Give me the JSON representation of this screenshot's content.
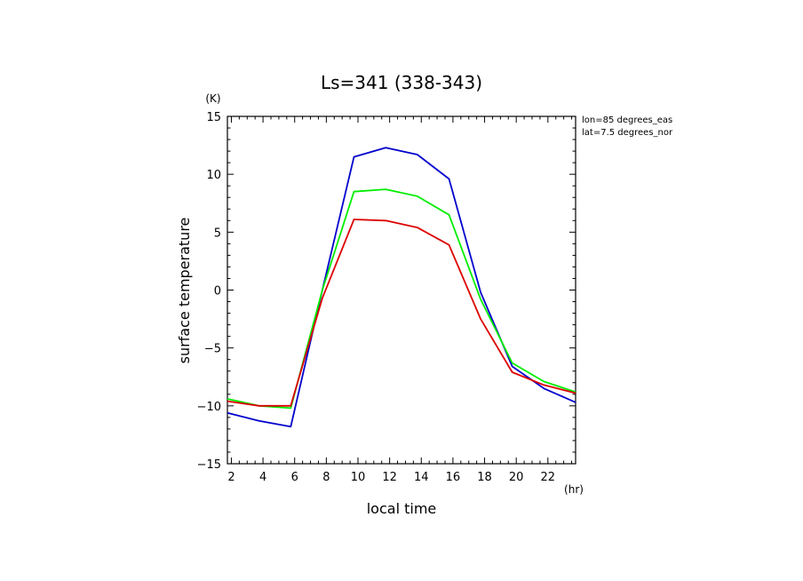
{
  "chart_data": {
    "type": "line",
    "title": "Ls=341 (338-343)",
    "xlabel": "local time",
    "ylabel": "surface temperature",
    "x_unit": "(hr)",
    "y_unit": "(K)",
    "annotations": [
      "lon=85 degrees_eas",
      "lat=7.5 degrees_nor"
    ],
    "xlim": [
      1.75,
      23.75
    ],
    "ylim": [
      -15,
      15
    ],
    "x_ticks": [
      2,
      4,
      6,
      8,
      10,
      12,
      14,
      16,
      18,
      20,
      22
    ],
    "y_ticks": [
      -15,
      -10,
      -5,
      0,
      5,
      10,
      15
    ],
    "x": [
      1.75,
      3.75,
      5.75,
      7.75,
      9.75,
      11.75,
      13.75,
      15.75,
      17.75,
      19.75,
      21.75,
      23.75
    ],
    "series": [
      {
        "color": "#0000cc",
        "values": [
          -10.6,
          -11.3,
          -11.8,
          0.0,
          11.5,
          12.3,
          11.7,
          9.6,
          -0.2,
          -6.6,
          -8.5,
          -9.7
        ]
      },
      {
        "color": "#00ee00",
        "values": [
          -9.4,
          -10.0,
          -10.2,
          0.0,
          8.5,
          8.7,
          8.1,
          6.5,
          -0.8,
          -6.3,
          -7.9,
          -8.8
        ]
      },
      {
        "color": "#dd0000",
        "values": [
          -9.6,
          -10.0,
          -10.0,
          -0.7,
          6.1,
          6.0,
          5.4,
          3.9,
          -2.5,
          -7.1,
          -8.2,
          -8.9
        ]
      }
    ]
  }
}
